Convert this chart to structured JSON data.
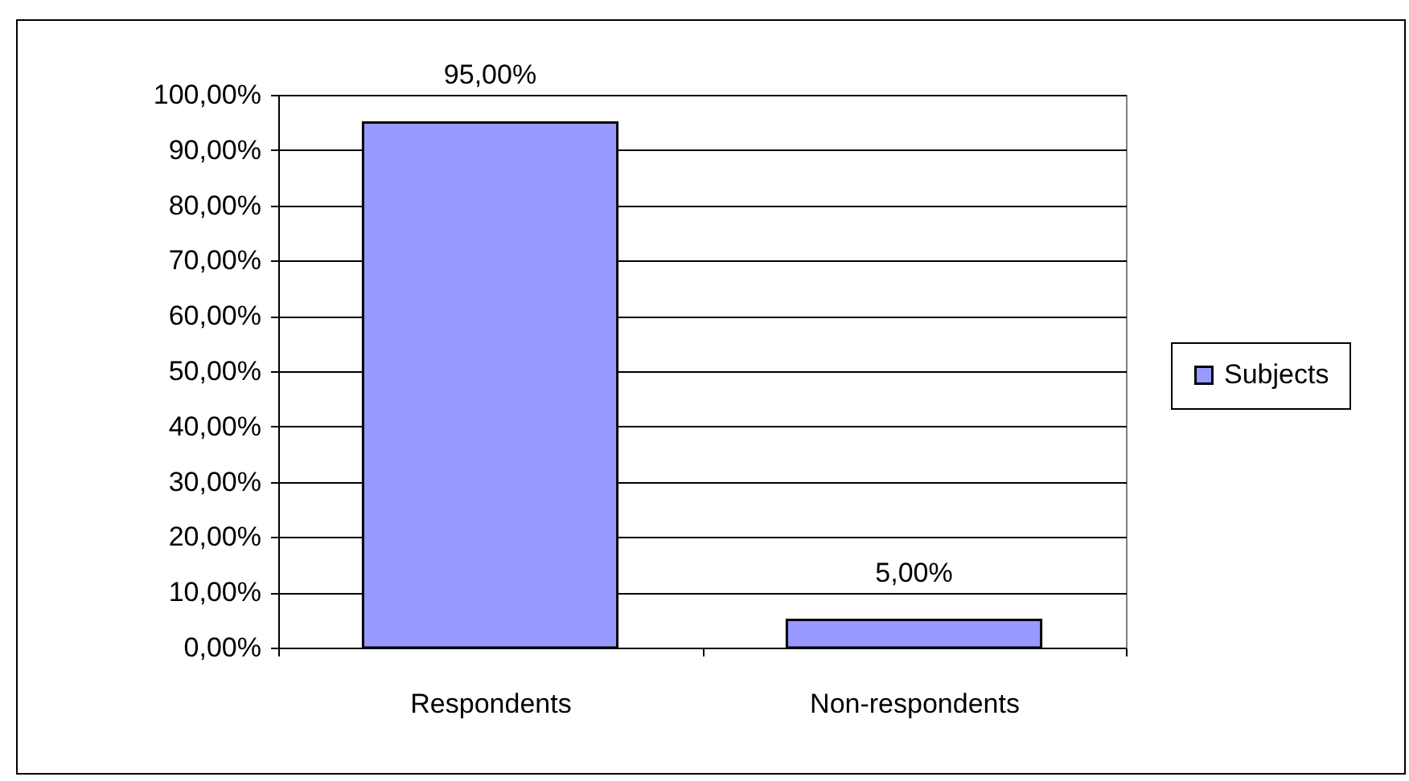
{
  "chart_data": {
    "type": "bar",
    "categories": [
      "Respondents",
      "Non-respondents"
    ],
    "series": [
      {
        "name": "Subjects",
        "color": "#9999ff",
        "values": [
          95,
          5
        ],
        "value_labels": [
          "95,00%",
          "5,00%"
        ]
      }
    ],
    "ylim": [
      0,
      100
    ],
    "yticks": [
      {
        "value": 0,
        "label": "0,00%"
      },
      {
        "value": 10,
        "label": "10,00%"
      },
      {
        "value": 20,
        "label": "20,00%"
      },
      {
        "value": 30,
        "label": "30,00%"
      },
      {
        "value": 40,
        "label": "40,00%"
      },
      {
        "value": 50,
        "label": "50,00%"
      },
      {
        "value": 60,
        "label": "60,00%"
      },
      {
        "value": 70,
        "label": "70,00%"
      },
      {
        "value": 80,
        "label": "80,00%"
      },
      {
        "value": 90,
        "label": "90,00%"
      },
      {
        "value": 100,
        "label": "100,00%"
      }
    ],
    "grid": true,
    "legend": "right"
  }
}
